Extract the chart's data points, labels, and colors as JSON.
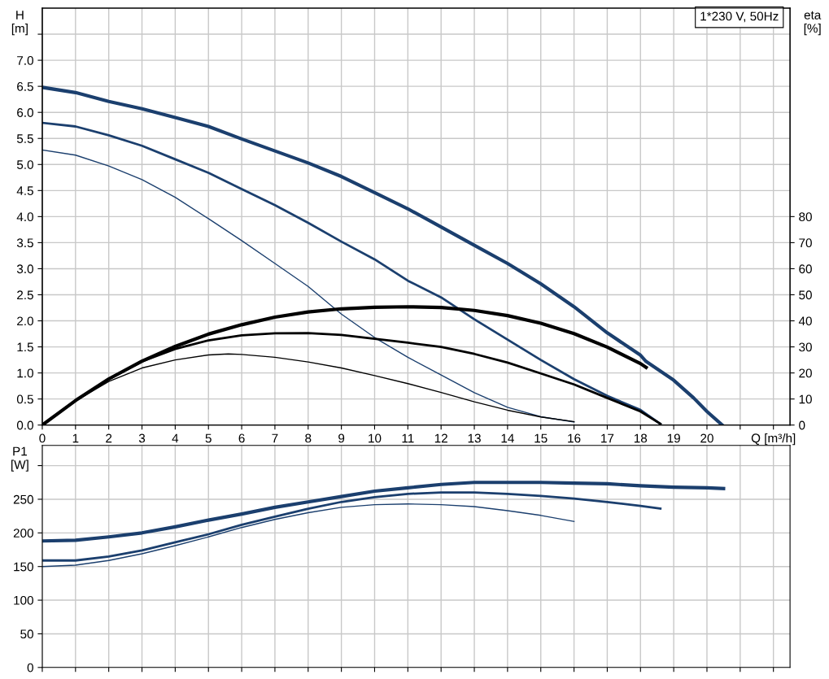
{
  "chart_data": [
    {
      "type": "line",
      "xlabel": "Q [m³/h]",
      "ylabel": "H\n[m]",
      "y2label": "eta\n[%]",
      "annotations": [
        "1*230 V, 50Hz"
      ],
      "grid": true,
      "legend": false,
      "marker": "none",
      "line_style": "solid",
      "xlim": [
        0,
        22.5
      ],
      "xticks": [
        0,
        1,
        2,
        3,
        4,
        5,
        6,
        7,
        8,
        9,
        10,
        11,
        12,
        13,
        14,
        15,
        16,
        17,
        18,
        19,
        20,
        {
          "value": 21,
          "label": null
        },
        {
          "value": 22,
          "label": null
        }
      ],
      "ylim": [
        0,
        8.0
      ],
      "yticks": [
        {
          "value": 0,
          "label": "0.0"
        },
        {
          "value": 0.5,
          "label": "0.5"
        },
        {
          "value": 1,
          "label": "1.0"
        },
        {
          "value": 1.5,
          "label": "1.5"
        },
        {
          "value": 2,
          "label": "2.0"
        },
        {
          "value": 2.5,
          "label": "2.5"
        },
        {
          "value": 3,
          "label": "3.0"
        },
        {
          "value": 3.5,
          "label": "3.5"
        },
        {
          "value": 4,
          "label": "4.0"
        },
        {
          "value": 4.5,
          "label": "4.5"
        },
        {
          "value": 5,
          "label": "5.0"
        },
        {
          "value": 5.5,
          "label": "5.5"
        },
        {
          "value": 6,
          "label": "6.0"
        },
        {
          "value": 6.5,
          "label": "6.5"
        },
        {
          "value": 7,
          "label": "7.0"
        },
        {
          "value": 7.5,
          "label": null
        }
      ],
      "y2lim": [
        0,
        160
      ],
      "y2ticks": [
        0,
        10,
        20,
        30,
        40,
        50,
        60,
        70,
        80
      ],
      "series": [
        {
          "color": "#1b3f6e",
          "x": [
            0,
            1,
            2,
            3,
            4,
            5,
            6,
            7,
            8,
            9,
            10,
            11,
            12,
            13,
            14,
            15,
            16,
            17,
            18,
            18.17,
            19,
            19.6,
            20,
            20.46
          ],
          "values": [
            6.48,
            6.38,
            6.21,
            6.07,
            5.9,
            5.73,
            5.49,
            5.26,
            5.03,
            4.77,
            4.46,
            4.15,
            3.8,
            3.45,
            3.1,
            2.71,
            2.27,
            1.77,
            1.34,
            1.22,
            0.86,
            0.52,
            0.26,
            0
          ]
        },
        {
          "color": "#1b3f6e",
          "x": [
            0,
            1,
            2,
            3,
            4,
            5,
            6,
            7,
            8,
            9,
            10,
            11,
            12,
            13,
            14,
            15,
            16,
            17,
            18,
            18.6
          ],
          "values": [
            5.8,
            5.73,
            5.56,
            5.36,
            5.1,
            4.84,
            4.53,
            4.22,
            3.88,
            3.52,
            3.18,
            2.77,
            2.45,
            2.03,
            1.64,
            1.25,
            0.88,
            0.56,
            0.29,
            0.02
          ]
        },
        {
          "color": "#1b3f6e",
          "x": [
            0,
            1,
            2,
            3,
            4,
            5,
            6,
            7,
            8,
            9,
            10,
            11,
            12,
            13,
            14,
            15,
            16
          ],
          "values": [
            5.28,
            5.18,
            4.97,
            4.71,
            4.37,
            3.96,
            3.54,
            3.1,
            2.66,
            2.13,
            1.68,
            1.3,
            0.96,
            0.62,
            0.34,
            0.16,
            0.06
          ]
        },
        {
          "color": "#000000",
          "axis": "y2",
          "x": [
            0,
            1,
            2,
            3,
            4,
            5,
            6,
            7,
            8,
            9,
            10,
            11,
            12,
            13,
            14,
            15,
            16,
            17,
            18,
            18.17
          ],
          "values": [
            0,
            9.4,
            17.7,
            24.5,
            30.2,
            34.9,
            38.5,
            41.4,
            43.4,
            44.6,
            45.2,
            45.4,
            45.1,
            44.0,
            42.0,
            39.1,
            35.1,
            29.9,
            23.6,
            22.1
          ]
        },
        {
          "color": "#000000",
          "axis": "y2",
          "x": [
            0,
            1,
            2,
            3,
            4,
            5,
            6,
            7,
            8,
            9,
            10,
            11,
            12,
            13,
            14,
            15,
            16,
            17,
            18,
            18.6
          ],
          "values": [
            0,
            9.4,
            17.6,
            24.4,
            29.2,
            32.5,
            34.4,
            35.2,
            35.3,
            34.6,
            33.1,
            31.6,
            30.0,
            27.3,
            24.0,
            19.8,
            15.6,
            10.4,
            5.2,
            0.5
          ]
        },
        {
          "color": "#000000",
          "axis": "y2",
          "x": [
            0,
            1,
            2,
            3,
            4,
            5,
            5.6,
            6,
            7,
            8,
            9,
            10,
            11,
            12,
            13,
            14,
            15,
            16
          ],
          "values": [
            0,
            9.2,
            16.7,
            21.9,
            25.0,
            26.9,
            27.3,
            27.1,
            26.0,
            24.2,
            21.9,
            19.0,
            15.9,
            12.5,
            8.9,
            5.7,
            3.1,
            1.3
          ]
        }
      ]
    },
    {
      "type": "line",
      "ylabel": "P1\n[W]",
      "grid": true,
      "legend": false,
      "marker": "none",
      "line_style": "solid",
      "tick_labels": "y",
      "xlim": [
        0,
        22.5
      ],
      "xticks": [
        0,
        1,
        2,
        3,
        4,
        5,
        6,
        7,
        8,
        9,
        10,
        11,
        12,
        13,
        14,
        15,
        16,
        17,
        18,
        19,
        20,
        21,
        22
      ],
      "ylim": [
        0,
        330
      ],
      "yticks": [
        0,
        50,
        100,
        150,
        200,
        250,
        {
          "value": 300,
          "label": null
        }
      ],
      "series": [
        {
          "color": "#1b3f6e",
          "x": [
            0,
            1,
            2,
            3,
            4,
            5,
            6,
            7,
            8,
            9,
            10,
            11,
            12,
            13,
            14,
            15,
            16,
            17,
            18,
            19,
            20,
            20.5
          ],
          "values": [
            188,
            189,
            194,
            200,
            209,
            219,
            228,
            238,
            246,
            254,
            262,
            267,
            272,
            275,
            275,
            275,
            274,
            273,
            270,
            268,
            267,
            266
          ]
        },
        {
          "color": "#1b3f6e",
          "x": [
            0,
            1,
            2,
            3,
            4,
            5,
            6,
            7,
            8,
            9,
            10,
            11,
            12,
            13,
            14,
            15,
            16,
            17,
            18,
            18.6
          ],
          "values": [
            159,
            159,
            165,
            174,
            186,
            198,
            212,
            224,
            236,
            246,
            253,
            258,
            260,
            260,
            258,
            255,
            251,
            246,
            240,
            236
          ]
        },
        {
          "color": "#1b3f6e",
          "x": [
            0,
            1,
            2,
            3,
            4,
            5,
            6,
            7,
            8,
            9,
            10,
            11,
            12,
            13,
            14,
            15,
            16
          ],
          "values": [
            150,
            152,
            159,
            169,
            181,
            194,
            208,
            220,
            230,
            238,
            242,
            243,
            242,
            239,
            233,
            226,
            217
          ]
        }
      ]
    }
  ]
}
